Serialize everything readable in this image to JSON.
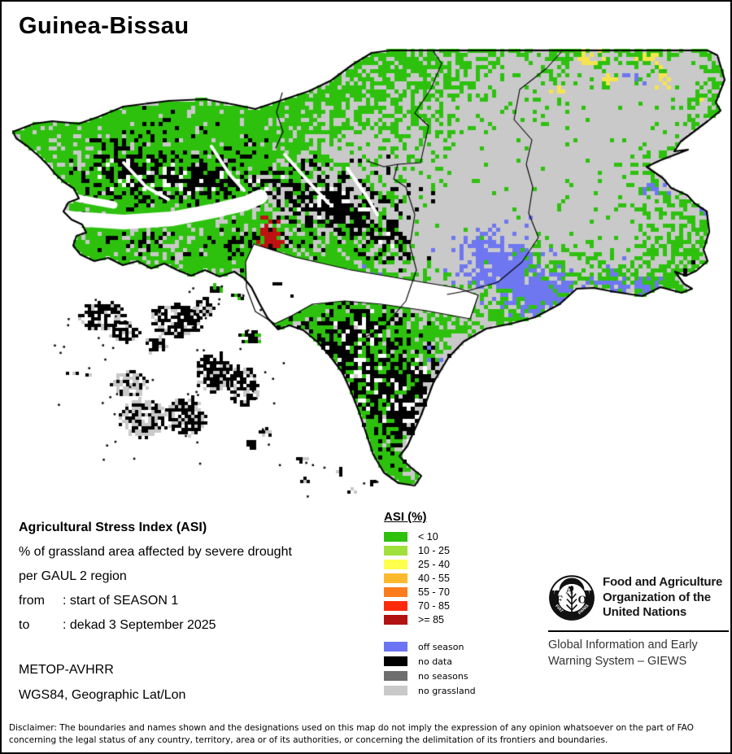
{
  "title": "Guinea-Bissau",
  "info": {
    "heading": "Agricultural Stress Index (ASI)",
    "line1": "% of grassland area affected by severe drought",
    "line2": "per GAUL 2 region",
    "from_label": "from",
    "from_value": ": start of SEASON 1",
    "to_label": "to",
    "to_value": ": dekad 3 September 2025",
    "sensor": "METOP-AVHRR",
    "projection": "WGS84, Geographic Lat/Lon"
  },
  "legend": {
    "title": "ASI (%)",
    "classes": [
      {
        "label": "< 10",
        "color": "#2DC10E"
      },
      {
        "label": "10 - 25",
        "color": "#A0E03C"
      },
      {
        "label": "25 - 40",
        "color": "#FFFF4D"
      },
      {
        "label": "40 - 55",
        "color": "#FDB92E"
      },
      {
        "label": "55 - 70",
        "color": "#FB7C1C"
      },
      {
        "label": "70 - 85",
        "color": "#FB2B0C"
      },
      {
        "label": ">= 85",
        "color": "#B31212"
      }
    ],
    "status": [
      {
        "label": "off season",
        "color": "#6B74F3"
      },
      {
        "label": "no data",
        "color": "#000000"
      },
      {
        "label": "no seasons",
        "color": "#6E6E6E"
      },
      {
        "label": "no grassland",
        "color": "#C9C9C9"
      }
    ]
  },
  "map_palette": {
    "green": "#2DC10E",
    "gray": "#C9C9C9",
    "blue": "#6E77F0",
    "yellow": "#F6E44F",
    "red": "#BE1212",
    "black": "#000000",
    "white": "#FFFFFF",
    "border": "#000000"
  },
  "fao": {
    "letters_f": "F",
    "letters_a": "A",
    "letters_o": "O",
    "motto_left": "FIAT",
    "motto_right": "PANIS",
    "org_line1": "Food and Agriculture",
    "org_line2": "Organization of the",
    "org_line3": "United Nations",
    "giews_line1": "Global Information and Early",
    "giews_line2": "Warning System – GIEWS"
  },
  "footer": {
    "disclaimer_line1": "Disclaimer: The boundaries and names shown and the designations used on this map do not imply the expression of any opinion whatsoever on the part of FAO",
    "disclaimer_line2": "concerning the legal status of any country, territory, area or of its authorities, or concerning the delimitation of its frontiers and boundaries."
  }
}
